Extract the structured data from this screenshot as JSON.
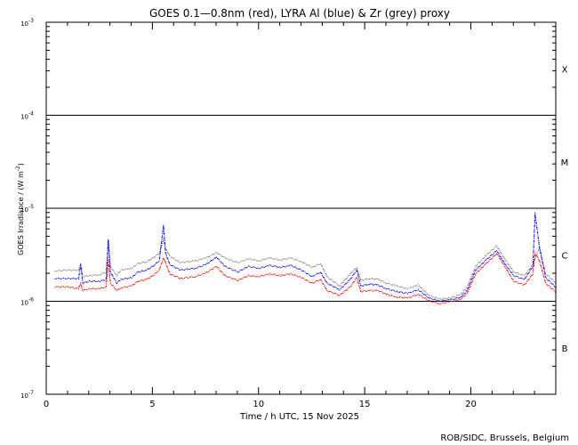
{
  "chart_data": {
    "type": "line",
    "title": "GOES 0.1—0.8nm (red), LYRA Al (blue) & Zr (grey) proxy",
    "xlabel": "Time / h UTC, 15 Nov 2025",
    "ylabel_main": "GOES Irradiance / (W m",
    "ylabel_sup": "-2",
    "ylabel_close": ")",
    "xlim": [
      0,
      24
    ],
    "ylim_log10": [
      -7,
      -3
    ],
    "x_ticks": [
      {
        "value": 0,
        "label": "0"
      },
      {
        "value": 5,
        "label": "5"
      },
      {
        "value": 10,
        "label": "10"
      },
      {
        "value": 15,
        "label": "15"
      },
      {
        "value": 20,
        "label": "20"
      }
    ],
    "y_ticks": [
      {
        "exp": -7,
        "base": "10",
        "sup": "-7"
      },
      {
        "exp": -6,
        "base": "10",
        "sup": "-6"
      },
      {
        "exp": -5,
        "base": "10",
        "sup": "-5"
      },
      {
        "exp": -4,
        "base": "10",
        "sup": "-4"
      },
      {
        "exp": -3,
        "base": "10",
        "sup": "-3"
      }
    ],
    "reference_lines_log10": [
      -6,
      -5,
      -4
    ],
    "flare_classes": [
      {
        "label": "X",
        "center_log10": -3.5
      },
      {
        "label": "M",
        "center_log10": -4.5
      },
      {
        "label": "C",
        "center_log10": -5.5
      },
      {
        "label": "B",
        "center_log10": -6.5
      }
    ],
    "series": [
      {
        "name": "LYRA Zr (grey) proxy",
        "color": "#808080",
        "style": "dots",
        "points": [
          [
            0.4,
            -5.67
          ],
          [
            1.0,
            -5.66
          ],
          [
            1.5,
            -5.66
          ],
          [
            1.6,
            -5.6
          ],
          [
            1.7,
            -5.73
          ],
          [
            2.0,
            -5.72
          ],
          [
            2.5,
            -5.71
          ],
          [
            2.8,
            -5.68
          ],
          [
            2.9,
            -5.35
          ],
          [
            3.0,
            -5.62
          ],
          [
            3.3,
            -5.72
          ],
          [
            3.5,
            -5.66
          ],
          [
            4.0,
            -5.64
          ],
          [
            4.3,
            -5.59
          ],
          [
            4.7,
            -5.57
          ],
          [
            5.0,
            -5.53
          ],
          [
            5.3,
            -5.48
          ],
          [
            5.5,
            -5.33
          ],
          [
            5.6,
            -5.43
          ],
          [
            5.8,
            -5.51
          ],
          [
            6.3,
            -5.58
          ],
          [
            7.0,
            -5.56
          ],
          [
            7.5,
            -5.53
          ],
          [
            8.0,
            -5.47
          ],
          [
            8.4,
            -5.53
          ],
          [
            9.0,
            -5.58
          ],
          [
            9.5,
            -5.54
          ],
          [
            10.0,
            -5.56
          ],
          [
            10.5,
            -5.53
          ],
          [
            11.0,
            -5.55
          ],
          [
            11.5,
            -5.53
          ],
          [
            12.0,
            -5.57
          ],
          [
            12.5,
            -5.63
          ],
          [
            12.9,
            -5.59
          ],
          [
            13.2,
            -5.73
          ],
          [
            13.8,
            -5.83
          ],
          [
            14.3,
            -5.7
          ],
          [
            14.6,
            -5.63
          ],
          [
            14.8,
            -5.77
          ],
          [
            15.2,
            -5.75
          ],
          [
            15.6,
            -5.76
          ],
          [
            16.0,
            -5.8
          ],
          [
            16.5,
            -5.83
          ],
          [
            17.0,
            -5.86
          ],
          [
            17.5,
            -5.82
          ],
          [
            18.0,
            -5.93
          ],
          [
            18.5,
            -5.97
          ],
          [
            19.0,
            -5.96
          ],
          [
            19.5,
            -5.92
          ],
          [
            19.8,
            -5.84
          ],
          [
            20.2,
            -5.62
          ],
          [
            20.7,
            -5.5
          ],
          [
            21.2,
            -5.4
          ],
          [
            21.6,
            -5.55
          ],
          [
            22.0,
            -5.68
          ],
          [
            22.5,
            -5.72
          ],
          [
            22.9,
            -5.6
          ],
          [
            23.2,
            -5.42
          ],
          [
            23.5,
            -5.7
          ],
          [
            24.0,
            -5.8
          ]
        ]
      },
      {
        "name": "LYRA Al (blue) proxy",
        "color": "#0000ff",
        "style": "dots",
        "points": [
          [
            0.4,
            -5.75
          ],
          [
            1.0,
            -5.75
          ],
          [
            1.5,
            -5.75
          ],
          [
            1.6,
            -5.6
          ],
          [
            1.7,
            -5.8
          ],
          [
            2.0,
            -5.78
          ],
          [
            2.5,
            -5.78
          ],
          [
            2.8,
            -5.76
          ],
          [
            2.9,
            -5.33
          ],
          [
            3.0,
            -5.68
          ],
          [
            3.3,
            -5.8
          ],
          [
            3.5,
            -5.76
          ],
          [
            4.0,
            -5.74
          ],
          [
            4.3,
            -5.68
          ],
          [
            4.7,
            -5.66
          ],
          [
            5.0,
            -5.62
          ],
          [
            5.3,
            -5.56
          ],
          [
            5.5,
            -5.18
          ],
          [
            5.6,
            -5.48
          ],
          [
            5.8,
            -5.6
          ],
          [
            6.3,
            -5.66
          ],
          [
            7.0,
            -5.64
          ],
          [
            7.5,
            -5.6
          ],
          [
            8.0,
            -5.52
          ],
          [
            8.4,
            -5.62
          ],
          [
            9.0,
            -5.68
          ],
          [
            9.5,
            -5.62
          ],
          [
            10.0,
            -5.64
          ],
          [
            10.5,
            -5.61
          ],
          [
            11.0,
            -5.63
          ],
          [
            11.5,
            -5.61
          ],
          [
            12.0,
            -5.66
          ],
          [
            12.5,
            -5.73
          ],
          [
            12.9,
            -5.68
          ],
          [
            13.2,
            -5.8
          ],
          [
            13.8,
            -5.87
          ],
          [
            14.3,
            -5.76
          ],
          [
            14.6,
            -5.66
          ],
          [
            14.8,
            -5.83
          ],
          [
            15.2,
            -5.81
          ],
          [
            15.6,
            -5.82
          ],
          [
            16.0,
            -5.86
          ],
          [
            16.5,
            -5.89
          ],
          [
            17.0,
            -5.91
          ],
          [
            17.5,
            -5.87
          ],
          [
            18.0,
            -5.96
          ],
          [
            18.5,
            -5.99
          ],
          [
            19.0,
            -5.98
          ],
          [
            19.5,
            -5.95
          ],
          [
            19.8,
            -5.88
          ],
          [
            20.2,
            -5.66
          ],
          [
            20.7,
            -5.55
          ],
          [
            21.2,
            -5.45
          ],
          [
            21.6,
            -5.6
          ],
          [
            22.0,
            -5.72
          ],
          [
            22.5,
            -5.76
          ],
          [
            22.9,
            -5.62
          ],
          [
            23.0,
            -5.05
          ],
          [
            23.2,
            -5.4
          ],
          [
            23.5,
            -5.74
          ],
          [
            24.0,
            -5.85
          ]
        ]
      },
      {
        "name": "GOES 0.1-0.8nm (red)",
        "color": "#ff0000",
        "style": "dots",
        "points": [
          [
            0.4,
            -5.84
          ],
          [
            1.0,
            -5.84
          ],
          [
            1.5,
            -5.86
          ],
          [
            1.6,
            -5.8
          ],
          [
            1.7,
            -5.88
          ],
          [
            2.0,
            -5.86
          ],
          [
            2.5,
            -5.86
          ],
          [
            2.8,
            -5.84
          ],
          [
            2.9,
            -5.55
          ],
          [
            3.0,
            -5.8
          ],
          [
            3.3,
            -5.88
          ],
          [
            3.5,
            -5.85
          ],
          [
            4.0,
            -5.83
          ],
          [
            4.3,
            -5.78
          ],
          [
            4.7,
            -5.76
          ],
          [
            5.0,
            -5.72
          ],
          [
            5.3,
            -5.66
          ],
          [
            5.5,
            -5.53
          ],
          [
            5.6,
            -5.58
          ],
          [
            5.8,
            -5.7
          ],
          [
            6.3,
            -5.75
          ],
          [
            7.0,
            -5.73
          ],
          [
            7.5,
            -5.69
          ],
          [
            8.0,
            -5.62
          ],
          [
            8.4,
            -5.72
          ],
          [
            9.0,
            -5.77
          ],
          [
            9.5,
            -5.72
          ],
          [
            10.0,
            -5.73
          ],
          [
            10.5,
            -5.7
          ],
          [
            11.0,
            -5.72
          ],
          [
            11.5,
            -5.7
          ],
          [
            12.0,
            -5.74
          ],
          [
            12.5,
            -5.8
          ],
          [
            12.9,
            -5.76
          ],
          [
            13.2,
            -5.88
          ],
          [
            13.8,
            -5.93
          ],
          [
            14.3,
            -5.84
          ],
          [
            14.6,
            -5.74
          ],
          [
            14.8,
            -5.89
          ],
          [
            15.2,
            -5.88
          ],
          [
            15.6,
            -5.88
          ],
          [
            16.0,
            -5.92
          ],
          [
            16.5,
            -5.95
          ],
          [
            17.0,
            -5.96
          ],
          [
            17.5,
            -5.92
          ],
          [
            18.0,
            -5.99
          ],
          [
            18.5,
            -6.02
          ],
          [
            19.0,
            -6.0
          ],
          [
            19.5,
            -5.97
          ],
          [
            19.8,
            -5.91
          ],
          [
            20.2,
            -5.7
          ],
          [
            20.7,
            -5.59
          ],
          [
            21.2,
            -5.48
          ],
          [
            21.6,
            -5.63
          ],
          [
            22.0,
            -5.78
          ],
          [
            22.5,
            -5.82
          ],
          [
            22.9,
            -5.7
          ],
          [
            23.0,
            -5.48
          ],
          [
            23.2,
            -5.55
          ],
          [
            23.5,
            -5.8
          ],
          [
            24.0,
            -5.9
          ]
        ]
      }
    ]
  },
  "credit": "ROB/SIDC, Brussels, Belgium"
}
